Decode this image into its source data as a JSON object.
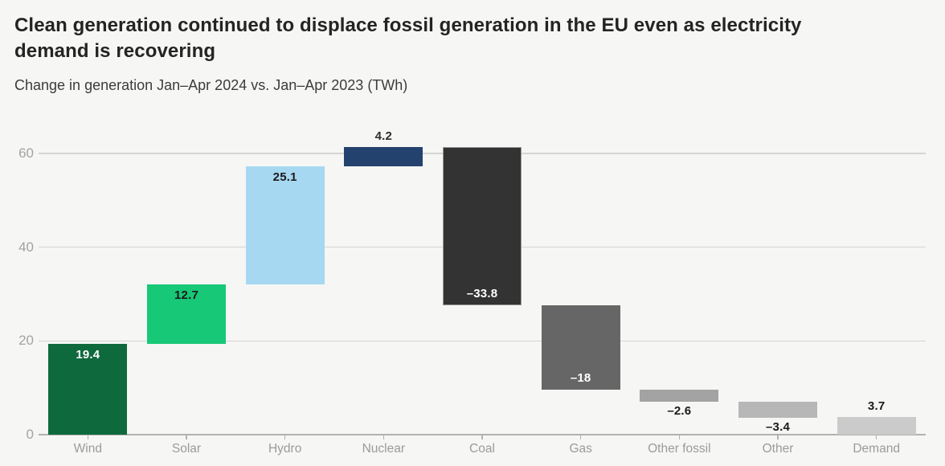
{
  "title": "Clean generation continued to displace fossil generation in the EU even as electricity demand is recovering",
  "subtitle": "Change in generation Jan–Apr 2024 vs. Jan–Apr 2023 (TWh)",
  "colors": {
    "background": "#f6f6f4",
    "title_text": "#242424",
    "subtitle_text": "#3c3c3c",
    "gridline": "#d4d4d4",
    "axis_line": "#b2b2b2",
    "axis_label_text": "#9b9b9b",
    "wind_green": "#0e6a3c",
    "solar_green": "#17c877",
    "hydro_blue": "#a6d8f2",
    "nuclear_navy": "#24426e",
    "coal_black": "#333333",
    "gas_gray": "#666666",
    "other_fossil_gray": "#a3a3a3",
    "other_gray": "#b7b7b7",
    "demand_gray": "#cbcbcb"
  },
  "chart_data": {
    "type": "bar",
    "subtype": "waterfall",
    "title": "Clean generation continued to displace fossil generation in the EU even as electricity demand is recovering",
    "subtitle": "Change in generation Jan–Apr 2024 vs. Jan–Apr 2023 (TWh)",
    "unit": "TWh",
    "xlabel": "",
    "ylabel": "",
    "grid": true,
    "legend_position": "none",
    "yticks": [
      0,
      20,
      40,
      60
    ],
    "ylim": [
      0,
      63.5
    ],
    "categories": [
      "Wind",
      "Solar",
      "Hydro",
      "Nuclear",
      "Coal",
      "Gas",
      "Other fossil",
      "Other",
      "Demand"
    ],
    "values": [
      19.4,
      12.7,
      25.1,
      4.2,
      -33.8,
      -18,
      -2.6,
      -3.4,
      3.7
    ],
    "value_labels": [
      "19.4",
      "12.7",
      "25.1",
      "4.2",
      "–33.8",
      "–18",
      "–2.6",
      "–3.4",
      "3.7"
    ],
    "cumulative_start": [
      0,
      19.4,
      32.1,
      57.2,
      27.6,
      9.6,
      7.0,
      3.6,
      0
    ],
    "cumulative_end": [
      19.4,
      32.1,
      57.2,
      61.4,
      61.4,
      27.6,
      9.6,
      7.0,
      3.7
    ],
    "bar_colors": [
      "#0e6a3c",
      "#17c877",
      "#a6d8f2",
      "#24426e",
      "#333333",
      "#666666",
      "#a3a3a3",
      "#b7b7b7",
      "#cbcbcb"
    ],
    "bar_strokes": [
      "",
      "",
      "",
      "",
      "#9a9a9a",
      "",
      "",
      "",
      ""
    ],
    "label_placements": [
      "inside-top",
      "inside-top",
      "inside-top",
      "above",
      "inside-bottom",
      "inside-bottom",
      "below",
      "below",
      "above"
    ],
    "label_colors": [
      "#ffffff",
      "#1b1b1b",
      "#1b1b1b",
      "#2e2e2e",
      "#ffffff",
      "#ffffff",
      "#1b1b1b",
      "#1b1b1b",
      "#1b1b1b"
    ]
  }
}
